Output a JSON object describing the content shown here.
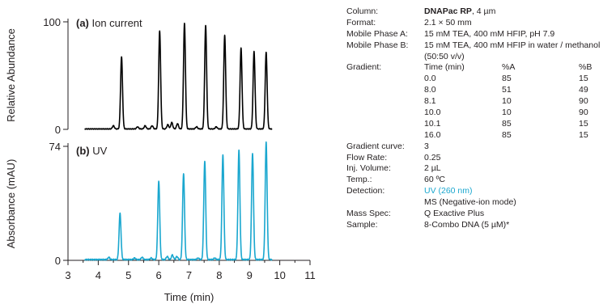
{
  "chart_data": [
    {
      "type": "line",
      "panel_label": "(a)",
      "panel_title": "Ion current",
      "ylabel": "Relative Abundance",
      "ylim": [
        0,
        100
      ],
      "yticks": [
        "0",
        "100"
      ],
      "xlim": [
        3,
        11
      ],
      "color": "#000000",
      "peaks": [
        {
          "x": 4.5,
          "y": 3
        },
        {
          "x": 4.77,
          "y": 67
        },
        {
          "x": 5.3,
          "y": 2
        },
        {
          "x": 5.55,
          "y": 3
        },
        {
          "x": 5.78,
          "y": 3
        },
        {
          "x": 6.03,
          "y": 91
        },
        {
          "x": 6.3,
          "y": 4
        },
        {
          "x": 6.43,
          "y": 6
        },
        {
          "x": 6.62,
          "y": 5
        },
        {
          "x": 6.85,
          "y": 98
        },
        {
          "x": 7.25,
          "y": 2
        },
        {
          "x": 7.55,
          "y": 96
        },
        {
          "x": 7.9,
          "y": 2
        },
        {
          "x": 8.18,
          "y": 87
        },
        {
          "x": 8.72,
          "y": 75
        },
        {
          "x": 9.15,
          "y": 72
        },
        {
          "x": 9.55,
          "y": 71
        }
      ]
    },
    {
      "type": "line",
      "panel_label": "(b)",
      "panel_title": "UV",
      "ylabel": "Absorbance (mAU)",
      "ylim": [
        0,
        74
      ],
      "yticks": [
        "0",
        "74"
      ],
      "xlabel": "Time (min)",
      "xticks": [
        "3",
        "4",
        "5",
        "6",
        "7",
        "8",
        "9",
        "10",
        "11"
      ],
      "xlim": [
        3,
        11
      ],
      "color": "#1aa7cf",
      "peaks": [
        {
          "x": 4.35,
          "y": 1.5
        },
        {
          "x": 4.72,
          "y": 30
        },
        {
          "x": 5.2,
          "y": 1
        },
        {
          "x": 5.45,
          "y": 1.5
        },
        {
          "x": 5.75,
          "y": 1
        },
        {
          "x": 6.0,
          "y": 51
        },
        {
          "x": 6.28,
          "y": 2
        },
        {
          "x": 6.45,
          "y": 3
        },
        {
          "x": 6.6,
          "y": 2
        },
        {
          "x": 6.82,
          "y": 56
        },
        {
          "x": 7.3,
          "y": 1
        },
        {
          "x": 7.52,
          "y": 64
        },
        {
          "x": 7.85,
          "y": 1
        },
        {
          "x": 8.12,
          "y": 68
        },
        {
          "x": 8.65,
          "y": 71
        },
        {
          "x": 9.1,
          "y": 69
        },
        {
          "x": 9.55,
          "y": 76
        }
      ]
    }
  ],
  "conditions": {
    "column": {
      "label": "Column:",
      "name": "DNAPac RP",
      "detail": ", 4 µm"
    },
    "format": {
      "label": "Format:",
      "value": "2.1 × 50 mm"
    },
    "phase_a": {
      "label": "Mobile Phase A:",
      "value": "15 mM TEA, 400 mM HFIP, pH 7.9"
    },
    "phase_b": {
      "label": "Mobile Phase B:",
      "value": "15 mM TEA, 400 mM HFIP in water / methanol",
      "value2": "(50:50 v/v)"
    },
    "gradient": {
      "label": "Gradient:",
      "headers": [
        "Time (min)",
        "%A",
        "%B"
      ],
      "rows": [
        [
          "0.0",
          "85",
          "15"
        ],
        [
          "8.0",
          "51",
          "49"
        ],
        [
          "8.1",
          "10",
          "90"
        ],
        [
          "10.0",
          "10",
          "90"
        ],
        [
          "10.1",
          "85",
          "15"
        ],
        [
          "16.0",
          "85",
          "15"
        ]
      ]
    },
    "gradient_curve": {
      "label": "Gradient curve:",
      "value": "3"
    },
    "flow_rate": {
      "label": "Flow Rate:",
      "value": "0.25"
    },
    "inj_volume": {
      "label": "Inj. Volume:",
      "value": "2 µL"
    },
    "temp": {
      "label": "Temp.:",
      "value": "60 ºC"
    },
    "detection": {
      "label": "Detection:",
      "value": "UV (260 nm)",
      "value2": "MS (Negative-ion mode)"
    },
    "mass_spec": {
      "label": "Mass Spec:",
      "value": "Q Exactive Plus"
    },
    "sample": {
      "label": "Sample:",
      "value": "8-Combo DNA (5 µM)*"
    },
    "uv_color": "#1aa7cf"
  }
}
